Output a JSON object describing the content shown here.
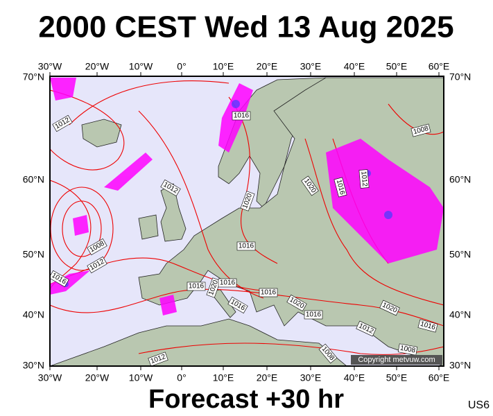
{
  "title": "2000 CEST Wed 13 Aug 2025",
  "map": {
    "top_longitudes": [
      "30°W",
      "20°W",
      "10°W",
      "0°",
      "10°E",
      "20°E",
      "30°E",
      "40°E",
      "50°E",
      "60°E"
    ],
    "bottom_longitudes": [
      "30°W",
      "20°W",
      "10°W",
      "0°",
      "10°E",
      "20°E",
      "30°E",
      "40°E",
      "50°E",
      "60°E"
    ],
    "left_latitudes": [
      "70°N",
      "60°N",
      "50°N",
      "40°N",
      "30°N"
    ],
    "right_latitudes": [
      "70°N",
      "60°N",
      "50°N",
      "40°N",
      "30°N"
    ],
    "isobar_labels": [
      "1012",
      "1016",
      "1012",
      "1020",
      "1020",
      "1016",
      "1012",
      "1008",
      "1008",
      "1012",
      "1016",
      "1016",
      "1016",
      "1020",
      "1016",
      "1016",
      "1016",
      "1020",
      "1016",
      "1020",
      "1016",
      "1012",
      "1008",
      "1008",
      "1012"
    ],
    "copyright": "Copyright metvuw.com"
  },
  "footer": {
    "forecast": "Forecast +30 hr",
    "code": "US6"
  }
}
